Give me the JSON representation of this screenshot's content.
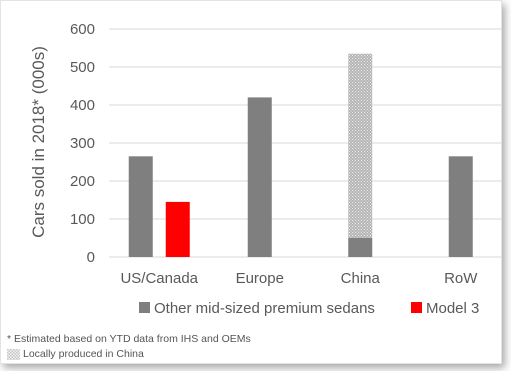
{
  "chart_data": {
    "type": "bar",
    "ylabel": "Cars sold in 2018* (000s)",
    "ylim": [
      0,
      600
    ],
    "yticks": [
      0,
      100,
      200,
      300,
      400,
      500,
      600
    ],
    "grid": true,
    "legend_position": "bottom",
    "categories": [
      "US/Canada",
      "Europe",
      "China",
      "RoW"
    ],
    "series": [
      {
        "name": "Other mid-sized premium sedans",
        "color": "#7f7f7f",
        "values": [
          265,
          420,
          535,
          265
        ],
        "locally_produced_in_china": [
          0,
          0,
          485,
          0
        ]
      },
      {
        "name": "Model 3",
        "color": "#ff0000",
        "values": [
          145,
          0,
          0,
          0
        ]
      }
    ]
  },
  "footnotes": {
    "estimate": "* Estimated based on YTD data from IHS and OEMs",
    "local": "Locally produced in China"
  },
  "colors": {
    "hatch": "#c8c8c8",
    "grid": "#d9d9d9",
    "text": "#595959"
  }
}
